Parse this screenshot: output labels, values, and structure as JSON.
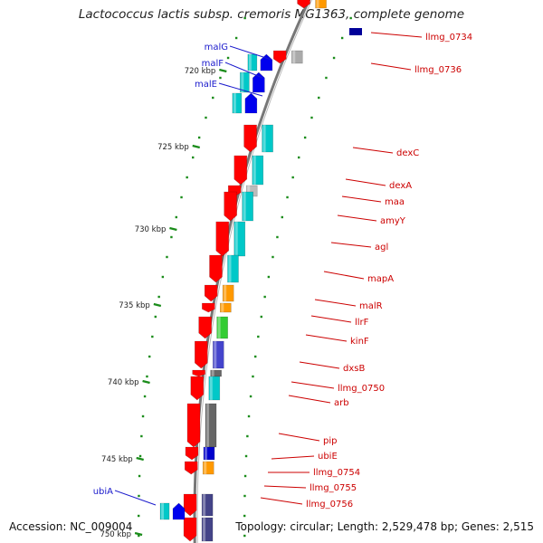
{
  "title": "Lactococcus lactis subsp. cremoris MG1363, complete genome",
  "footer": {
    "accession": "Accession: NC_009004",
    "summary": "Topology: circular; Length: 2,529,478 bp; Genes: 2,515"
  },
  "colors": {
    "forward": "#0000ee",
    "reverse": "#ff0000",
    "backbone": "#777777",
    "tick": "#1a8c1a",
    "label_forward": "#1a1acc",
    "label_reverse": "#cc0000"
  },
  "kbp_ticks": [
    "720 kbp",
    "725 kbp",
    "730 kbp",
    "735 kbp",
    "740 kbp",
    "745 kbp",
    "750 kbp"
  ],
  "forward_genes": [
    "malG",
    "malF",
    "malE",
    "ubiA"
  ],
  "reverse_genes": [
    "llmg_0734",
    "llmg_0736",
    "dexC",
    "dexA",
    "maa",
    "amyY",
    "agl",
    "mapA",
    "malR",
    "llrF",
    "kinF",
    "dxsB",
    "llmg_0750",
    "arb",
    "pip",
    "ubiE",
    "llmg_0754",
    "llmg_0755",
    "llmg_0756"
  ]
}
